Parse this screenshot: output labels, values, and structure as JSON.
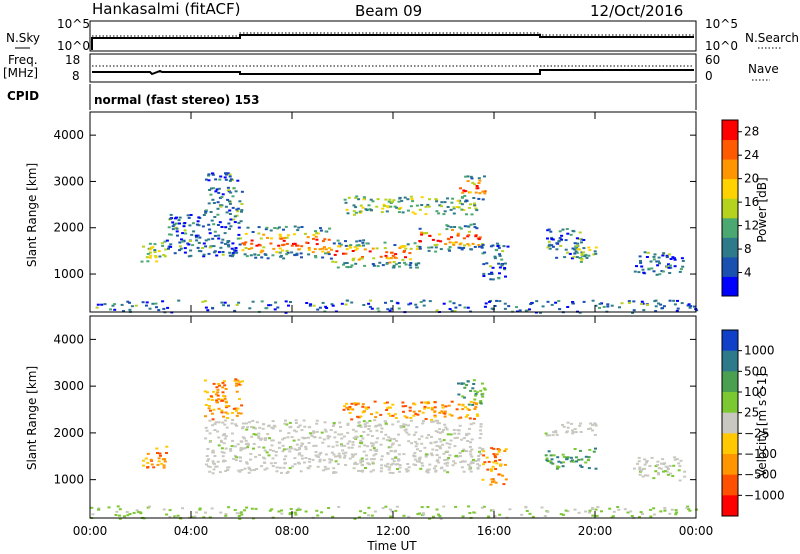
{
  "header": {
    "station": "Hankasalmi (fitACF)",
    "beam": "Beam 09",
    "date": "12/Oct/2016"
  },
  "top_panels": {
    "nsky_label": "N.Sky",
    "nsearch_label": "N.Search",
    "log_top_left": "10^5",
    "log_bottom_left": "10^0",
    "log_top_right": "10^5",
    "log_bottom_right": "10^0",
    "freq_label": "Freq.",
    "freq_unit": "[MHz]",
    "freq_ticks": [
      "18",
      "8"
    ],
    "nave_ticks": [
      "60",
      "0"
    ],
    "nave_label": "Nave",
    "cpid_label": "CPID",
    "cpid_text": "normal (fast stereo) 153"
  },
  "colors": {
    "power": [
      "#0000ff",
      "#1a50b0",
      "#2f7a8a",
      "#4aa870",
      "#b4d21e",
      "#ffd200",
      "#ff9600",
      "#ff5a00",
      "#ff0000"
    ],
    "velocity": [
      "#1040c8",
      "#2e7a8a",
      "#4aa050",
      "#7cc832",
      "#c8c8c0",
      "#ffc800",
      "#ff9600",
      "#ff5000",
      "#ff0000"
    ],
    "gray": "#c8c8c0"
  },
  "chart_data": [
    {
      "type": "heatmap",
      "title": "Power",
      "xlabel": "Time UT",
      "ylabel": "Slant Range [km]",
      "xlim": [
        0,
        24
      ],
      "ylim": [
        180,
        4500
      ],
      "x_ticks": [
        "00:00",
        "04:00",
        "08:00",
        "12:00",
        "16:00",
        "20:00",
        "00:00"
      ],
      "y_ticks": [
        "1000",
        "2000",
        "3000",
        "4000"
      ],
      "y_tick_values": [
        1000,
        2000,
        3000,
        4000
      ],
      "colorbar_label": "Power [dB]",
      "colorbar_ticks": [
        "4",
        "8",
        "12",
        "16",
        "20",
        "24",
        "28"
      ],
      "colorbar_range": [
        0,
        30
      ],
      "bands": [
        {
          "t0": 2.0,
          "t1": 3.0,
          "r0": 1250,
          "r1": 1750,
          "level": "mid"
        },
        {
          "t0": 3.0,
          "t1": 6.0,
          "r0": 1400,
          "r1": 2300,
          "level": "low"
        },
        {
          "t0": 4.5,
          "t1": 6.0,
          "r0": 2300,
          "r1": 3200,
          "level": "low"
        },
        {
          "t0": 6.0,
          "t1": 9.5,
          "r0": 1350,
          "r1": 2050,
          "level": "high"
        },
        {
          "t0": 9.5,
          "t1": 13.0,
          "r0": 1150,
          "r1": 1750,
          "level": "high"
        },
        {
          "t0": 13.0,
          "t1": 15.5,
          "r0": 1500,
          "r1": 2100,
          "level": "high"
        },
        {
          "t0": 10.0,
          "t1": 15.3,
          "r0": 2300,
          "r1": 2700,
          "level": "mid"
        },
        {
          "t0": 14.5,
          "t1": 15.6,
          "r0": 2600,
          "r1": 3150,
          "level": "high"
        },
        {
          "t0": 15.5,
          "t1": 16.5,
          "r0": 900,
          "r1": 1700,
          "level": "low"
        },
        {
          "t0": 18.0,
          "t1": 19.5,
          "r0": 1250,
          "r1": 2000,
          "level": "low"
        },
        {
          "t0": 19.2,
          "t1": 20.0,
          "r0": 1300,
          "r1": 1600,
          "level": "mid"
        },
        {
          "t0": 21.5,
          "t1": 23.5,
          "r0": 1000,
          "r1": 1500,
          "level": "low"
        },
        {
          "t0": 0.0,
          "t1": 24.0,
          "r0": 180,
          "r1": 450,
          "level": "low"
        }
      ]
    },
    {
      "type": "heatmap",
      "title": "Velocity",
      "xlabel": "Time UT",
      "ylabel": "Slant Range [km]",
      "xlim": [
        0,
        24
      ],
      "ylim": [
        180,
        4500
      ],
      "x_ticks": [
        "00:00",
        "04:00",
        "08:00",
        "12:00",
        "16:00",
        "20:00",
        "00:00"
      ],
      "y_ticks": [
        "1000",
        "2000",
        "3000",
        "4000"
      ],
      "y_tick_values": [
        1000,
        2000,
        3000,
        4000
      ],
      "colorbar_label": "Velocity [m s^-1]",
      "colorbar_ticks": [
        "1000",
        "500",
        "100",
        "25",
        "−25",
        "−100",
        "−500",
        "−1000"
      ],
      "bands": [
        {
          "t0": 2.0,
          "t1": 3.0,
          "r0": 1250,
          "r1": 1750,
          "level": "neg"
        },
        {
          "t0": 4.5,
          "t1": 15.5,
          "r0": 1150,
          "r1": 2300,
          "level": "gray"
        },
        {
          "t0": 4.5,
          "t1": 6.0,
          "r0": 2300,
          "r1": 3200,
          "level": "neg"
        },
        {
          "t0": 10.0,
          "t1": 15.3,
          "r0": 2300,
          "r1": 2700,
          "level": "neg"
        },
        {
          "t0": 14.5,
          "t1": 15.6,
          "r0": 2600,
          "r1": 3150,
          "level": "pos"
        },
        {
          "t0": 15.5,
          "t1": 16.5,
          "r0": 900,
          "r1": 1700,
          "level": "neg"
        },
        {
          "t0": 18.0,
          "t1": 20.0,
          "r0": 1250,
          "r1": 1700,
          "level": "pos"
        },
        {
          "t0": 18.0,
          "t1": 20.0,
          "r0": 1950,
          "r1": 2250,
          "level": "gray"
        },
        {
          "t0": 21.5,
          "t1": 23.5,
          "r0": 1000,
          "r1": 1500,
          "level": "gray"
        },
        {
          "t0": 0.0,
          "t1": 24.0,
          "r0": 180,
          "r1": 450,
          "level": "pos"
        }
      ]
    }
  ]
}
